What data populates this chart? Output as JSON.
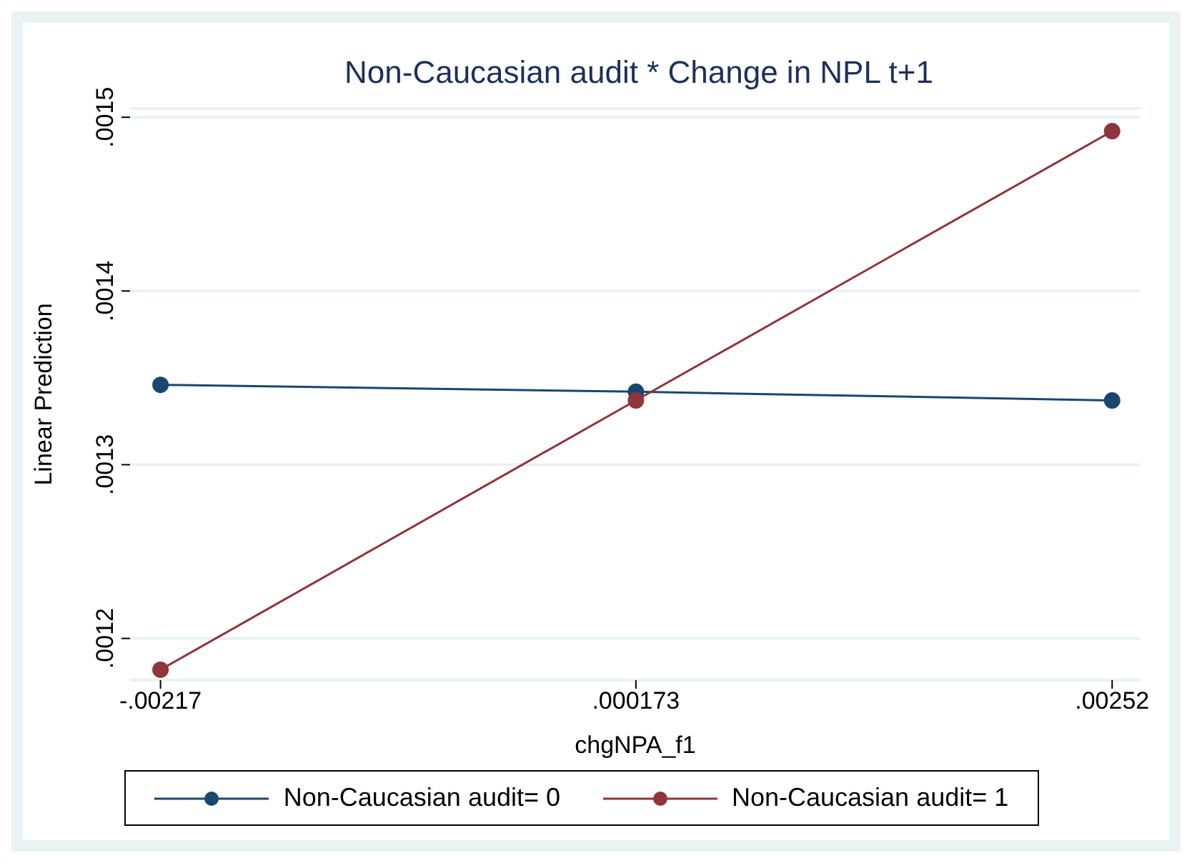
{
  "chart_data": {
    "type": "line",
    "title": "Non-Caucasian audit * Change in NPL t+1",
    "xlabel": "chgNPA_f1",
    "ylabel": "Linear Prediction",
    "x": [
      -0.00217,
      0.000173,
      0.00252
    ],
    "series": [
      {
        "name": "Non-Caucasian audit= 0",
        "color": "#1a476f",
        "values": [
          0.001346,
          0.001342,
          0.001337
        ]
      },
      {
        "name": "Non-Caucasian audit= 1",
        "color": "#90353b",
        "values": [
          0.001182,
          0.001337,
          0.001492
        ]
      }
    ],
    "xlim": [
      -0.00232,
      0.00266
    ],
    "xticks": [
      {
        "value": -0.00217,
        "label": "-.00217"
      },
      {
        "value": 0.000173,
        "label": ".000173"
      },
      {
        "value": 0.00252,
        "label": ".00252"
      }
    ],
    "ylim": [
      0.001176,
      0.001505
    ],
    "yticks": [
      {
        "value": 0.0012,
        "label": ".0012"
      },
      {
        "value": 0.0013,
        "label": ".0013"
      },
      {
        "value": 0.0014,
        "label": ".0014"
      },
      {
        "value": 0.0015,
        "label": ".0015"
      }
    ],
    "grid": "y",
    "legend": "bottom",
    "marker": "circle",
    "line_style": "solid"
  }
}
